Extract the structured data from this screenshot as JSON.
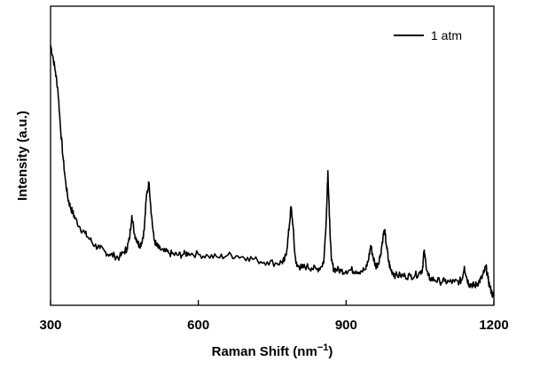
{
  "chart_data": {
    "type": "line",
    "title": "",
    "xlabel": "Raman Shift (nm",
    "xlabel_sup": "−1",
    "xlabel_close": ")",
    "ylabel": "Intensity (a.u.)",
    "xlim": [
      300,
      1200
    ],
    "ylim": [
      0,
      1
    ],
    "y_ticks_labeled": false,
    "grid": false,
    "legend_position": "top-right",
    "x_ticks": [
      300,
      600,
      900,
      1200
    ],
    "x_tick_labels": [
      "300",
      "600",
      "900",
      "1200"
    ],
    "series": [
      {
        "name": "1 atm",
        "color": "#000000",
        "x": [
          300,
          305,
          310,
          315,
          320,
          325,
          330,
          335,
          340,
          345,
          350,
          360,
          370,
          380,
          390,
          400,
          410,
          420,
          430,
          440,
          450,
          455,
          460,
          465,
          470,
          475,
          480,
          485,
          490,
          495,
          500,
          505,
          510,
          515,
          520,
          530,
          540,
          550,
          560,
          570,
          580,
          600,
          620,
          640,
          660,
          680,
          700,
          720,
          740,
          760,
          770,
          775,
          780,
          785,
          788,
          792,
          796,
          800,
          805,
          810,
          820,
          830,
          840,
          850,
          855,
          860,
          863,
          866,
          870,
          875,
          880,
          890,
          900,
          910,
          920,
          930,
          940,
          945,
          950,
          955,
          960,
          965,
          970,
          975,
          978,
          982,
          986,
          990,
          995,
          1000,
          1010,
          1020,
          1030,
          1040,
          1050,
          1055,
          1058,
          1062,
          1066,
          1070,
          1080,
          1090,
          1100,
          1110,
          1120,
          1130,
          1135,
          1140,
          1145,
          1150,
          1155,
          1160,
          1165,
          1170,
          1175,
          1180,
          1184,
          1188,
          1192,
          1196,
          1200
        ],
        "y": [
          0.87,
          0.83,
          0.78,
          0.72,
          0.6,
          0.5,
          0.42,
          0.36,
          0.33,
          0.31,
          0.29,
          0.26,
          0.24,
          0.22,
          0.2,
          0.19,
          0.18,
          0.17,
          0.165,
          0.16,
          0.18,
          0.19,
          0.22,
          0.3,
          0.24,
          0.22,
          0.2,
          0.21,
          0.25,
          0.37,
          0.41,
          0.3,
          0.22,
          0.2,
          0.19,
          0.18,
          0.175,
          0.17,
          0.168,
          0.17,
          0.175,
          0.17,
          0.165,
          0.16,
          0.168,
          0.165,
          0.16,
          0.15,
          0.145,
          0.14,
          0.145,
          0.15,
          0.19,
          0.27,
          0.33,
          0.27,
          0.17,
          0.13,
          0.13,
          0.125,
          0.13,
          0.125,
          0.12,
          0.13,
          0.15,
          0.3,
          0.45,
          0.3,
          0.15,
          0.12,
          0.12,
          0.115,
          0.115,
          0.118,
          0.115,
          0.115,
          0.12,
          0.15,
          0.2,
          0.16,
          0.13,
          0.14,
          0.17,
          0.23,
          0.25,
          0.2,
          0.15,
          0.12,
          0.11,
          0.1,
          0.1,
          0.098,
          0.098,
          0.1,
          0.11,
          0.12,
          0.18,
          0.14,
          0.1,
          0.09,
          0.085,
          0.08,
          0.08,
          0.078,
          0.078,
          0.08,
          0.085,
          0.13,
          0.09,
          0.07,
          0.07,
          0.065,
          0.07,
          0.08,
          0.09,
          0.11,
          0.13,
          0.09,
          0.06,
          0.04,
          0.03
        ]
      }
    ]
  }
}
